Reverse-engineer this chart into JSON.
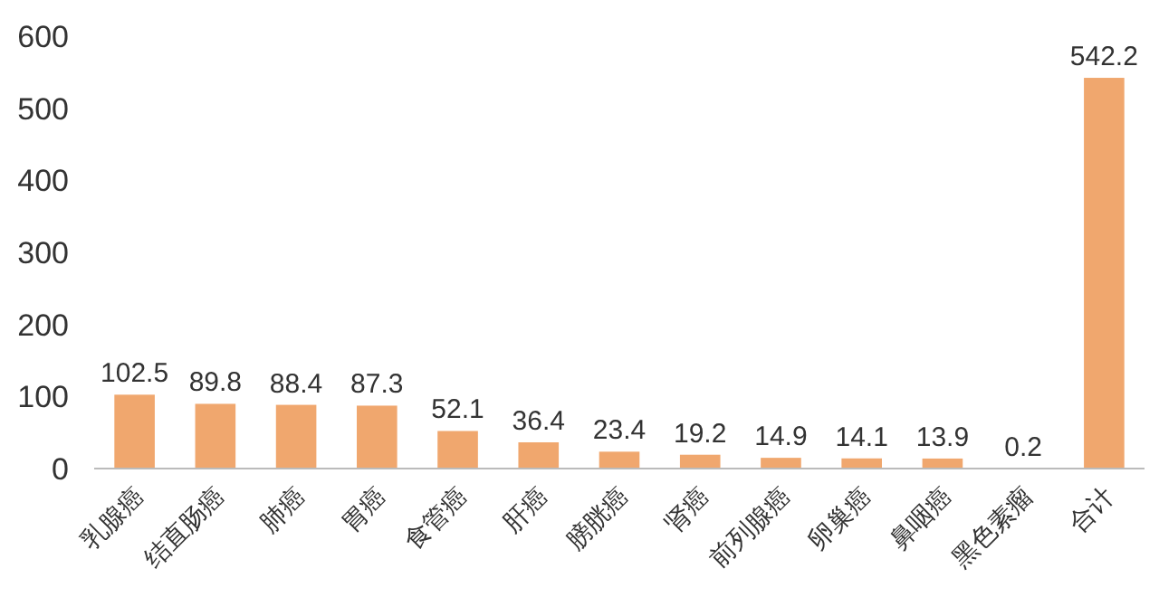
{
  "chart_data": {
    "type": "bar",
    "categories": [
      "乳腺癌",
      "结直肠癌",
      "肺癌",
      "胃癌",
      "食管癌",
      "肝癌",
      "膀胱癌",
      "肾癌",
      "前列腺癌",
      "卵巢癌",
      "鼻咽癌",
      "黑色素瘤",
      "合计"
    ],
    "values": [
      102.5,
      89.8,
      88.4,
      87.3,
      52.1,
      36.4,
      23.4,
      19.2,
      14.9,
      14.1,
      13.9,
      0.2,
      542.2
    ],
    "color": "#f0a76e",
    "ylim": [
      0,
      600
    ],
    "yticks": [
      0,
      100,
      200,
      300,
      400,
      500,
      600
    ],
    "grid": false,
    "data_labels": true
  }
}
